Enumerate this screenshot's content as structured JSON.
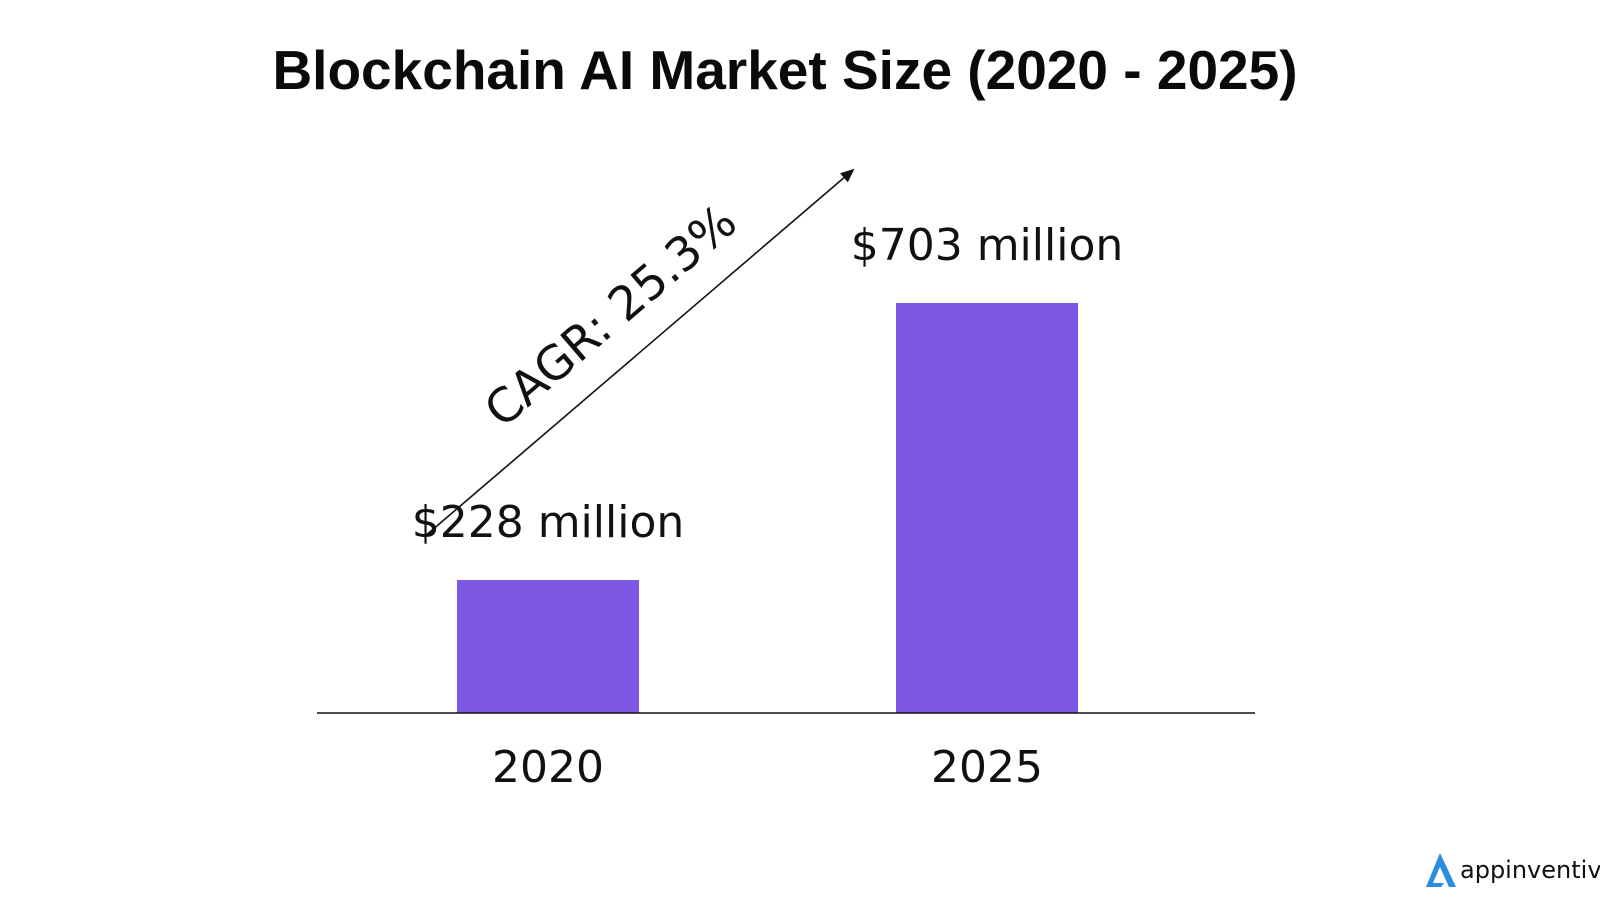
{
  "chart_data": {
    "type": "bar",
    "title": "Blockchain AI Market Size (2020 - 2025)",
    "xlabel": "",
    "ylabel": "",
    "categories": [
      "2020",
      "2025"
    ],
    "values": [
      228,
      703
    ],
    "data_labels": [
      "$228 million",
      "$703 million"
    ],
    "annotation": "CAGR: 25.3%",
    "bar_color": "#7b57e4",
    "grid": false,
    "legend": "none"
  },
  "branding": {
    "logo_text": "appinventiv",
    "logo_color": "#2a8de0"
  }
}
